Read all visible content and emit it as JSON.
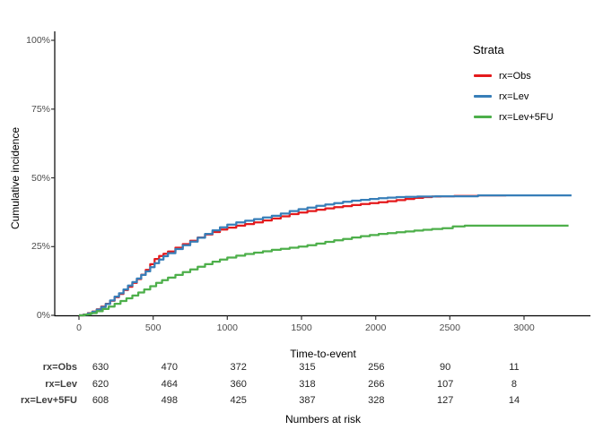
{
  "chart_data": {
    "type": "line",
    "line_style": "step-after",
    "title": "",
    "xlabel": "Time-to-event",
    "ylabel": "Cumulative incidence",
    "xlim": [
      0,
      3400
    ],
    "ylim_percent": [
      0,
      100
    ],
    "grid": false,
    "x_ticks": [
      0,
      500,
      1000,
      1500,
      2000,
      2500,
      3000
    ],
    "y_ticks": [
      {
        "label": "0%",
        "value": 0
      },
      {
        "label": "25%",
        "value": 25
      },
      {
        "label": "50%",
        "value": 50
      },
      {
        "label": "75%",
        "value": 75
      },
      {
        "label": "100%",
        "value": 100
      }
    ],
    "legend_title": "Strata",
    "legend_position": "right-top",
    "series": [
      {
        "name": "rx=Obs",
        "color": "#E41A1C",
        "points": [
          [
            0,
            0
          ],
          [
            30,
            0.3
          ],
          [
            60,
            0.8
          ],
          [
            90,
            1.4
          ],
          [
            120,
            2.2
          ],
          [
            150,
            3.2
          ],
          [
            180,
            4.2
          ],
          [
            210,
            5.3
          ],
          [
            240,
            6.6
          ],
          [
            270,
            7.8
          ],
          [
            300,
            9.2
          ],
          [
            330,
            10.4
          ],
          [
            360,
            11.8
          ],
          [
            390,
            13.2
          ],
          [
            420,
            14.8
          ],
          [
            450,
            16.5
          ],
          [
            480,
            18.6
          ],
          [
            510,
            20.5
          ],
          [
            540,
            21.6
          ],
          [
            570,
            22.4
          ],
          [
            600,
            23.2
          ],
          [
            650,
            24.6
          ],
          [
            700,
            25.9
          ],
          [
            750,
            27.1
          ],
          [
            800,
            28.3
          ],
          [
            850,
            29.4
          ],
          [
            900,
            30.3
          ],
          [
            950,
            31.2
          ],
          [
            1000,
            31.9
          ],
          [
            1060,
            32.6
          ],
          [
            1120,
            33.2
          ],
          [
            1180,
            33.8
          ],
          [
            1240,
            34.5
          ],
          [
            1300,
            35.2
          ],
          [
            1360,
            36.0
          ],
          [
            1420,
            36.8
          ],
          [
            1480,
            37.4
          ],
          [
            1540,
            37.9
          ],
          [
            1600,
            38.4
          ],
          [
            1660,
            38.9
          ],
          [
            1720,
            39.3
          ],
          [
            1780,
            39.7
          ],
          [
            1840,
            40.1
          ],
          [
            1900,
            40.5
          ],
          [
            1960,
            40.8
          ],
          [
            2020,
            41.1
          ],
          [
            2080,
            41.5
          ],
          [
            2140,
            41.9
          ],
          [
            2200,
            42.3
          ],
          [
            2260,
            42.7
          ],
          [
            2320,
            43.0
          ],
          [
            2380,
            43.2
          ],
          [
            2440,
            43.3
          ],
          [
            2530,
            43.4
          ],
          [
            2690,
            43.6
          ],
          [
            2880,
            43.6
          ]
        ]
      },
      {
        "name": "rx=Lev",
        "color": "#377EB8",
        "points": [
          [
            0,
            0
          ],
          [
            30,
            0.2
          ],
          [
            60,
            0.7
          ],
          [
            90,
            1.3
          ],
          [
            120,
            2.1
          ],
          [
            150,
            3.0
          ],
          [
            180,
            4.1
          ],
          [
            210,
            5.4
          ],
          [
            240,
            6.8
          ],
          [
            270,
            8.0
          ],
          [
            300,
            9.4
          ],
          [
            330,
            10.8
          ],
          [
            360,
            12.1
          ],
          [
            390,
            13.4
          ],
          [
            420,
            14.7
          ],
          [
            450,
            16.0
          ],
          [
            480,
            17.5
          ],
          [
            510,
            19.0
          ],
          [
            540,
            20.3
          ],
          [
            570,
            21.5
          ],
          [
            600,
            22.6
          ],
          [
            650,
            24.1
          ],
          [
            700,
            25.5
          ],
          [
            750,
            26.8
          ],
          [
            800,
            28.2
          ],
          [
            850,
            29.6
          ],
          [
            900,
            30.9
          ],
          [
            950,
            32.0
          ],
          [
            1000,
            33.0
          ],
          [
            1060,
            33.8
          ],
          [
            1120,
            34.4
          ],
          [
            1180,
            35.0
          ],
          [
            1240,
            35.6
          ],
          [
            1300,
            36.2
          ],
          [
            1360,
            37.0
          ],
          [
            1420,
            37.9
          ],
          [
            1480,
            38.6
          ],
          [
            1540,
            39.2
          ],
          [
            1600,
            39.8
          ],
          [
            1660,
            40.3
          ],
          [
            1720,
            40.8
          ],
          [
            1780,
            41.3
          ],
          [
            1840,
            41.7
          ],
          [
            1900,
            42.0
          ],
          [
            1960,
            42.3
          ],
          [
            2020,
            42.6
          ],
          [
            2080,
            42.8
          ],
          [
            2140,
            43.0
          ],
          [
            2200,
            43.1
          ],
          [
            2280,
            43.2
          ],
          [
            2400,
            43.3
          ],
          [
            2690,
            43.6
          ],
          [
            3100,
            43.6
          ],
          [
            3320,
            43.6
          ]
        ]
      },
      {
        "name": "rx=Lev+5FU",
        "color": "#4DAF4A",
        "points": [
          [
            0,
            0
          ],
          [
            40,
            0.3
          ],
          [
            80,
            0.8
          ],
          [
            120,
            1.5
          ],
          [
            160,
            2.3
          ],
          [
            200,
            3.2
          ],
          [
            240,
            4.2
          ],
          [
            280,
            5.2
          ],
          [
            320,
            6.2
          ],
          [
            360,
            7.2
          ],
          [
            400,
            8.3
          ],
          [
            440,
            9.4
          ],
          [
            480,
            10.6
          ],
          [
            520,
            11.8
          ],
          [
            560,
            12.8
          ],
          [
            600,
            13.7
          ],
          [
            650,
            14.7
          ],
          [
            700,
            15.7
          ],
          [
            750,
            16.7
          ],
          [
            800,
            17.7
          ],
          [
            850,
            18.6
          ],
          [
            900,
            19.5
          ],
          [
            950,
            20.3
          ],
          [
            1000,
            21.0
          ],
          [
            1060,
            21.7
          ],
          [
            1120,
            22.3
          ],
          [
            1180,
            22.8
          ],
          [
            1240,
            23.3
          ],
          [
            1300,
            23.8
          ],
          [
            1360,
            24.2
          ],
          [
            1420,
            24.6
          ],
          [
            1480,
            25.0
          ],
          [
            1540,
            25.5
          ],
          [
            1600,
            26.1
          ],
          [
            1660,
            26.7
          ],
          [
            1720,
            27.3
          ],
          [
            1780,
            27.8
          ],
          [
            1840,
            28.3
          ],
          [
            1900,
            28.8
          ],
          [
            1960,
            29.2
          ],
          [
            2020,
            29.6
          ],
          [
            2080,
            29.9
          ],
          [
            2140,
            30.2
          ],
          [
            2200,
            30.5
          ],
          [
            2260,
            30.8
          ],
          [
            2320,
            31.1
          ],
          [
            2380,
            31.4
          ],
          [
            2450,
            31.7
          ],
          [
            2520,
            32.3
          ],
          [
            2600,
            32.6
          ],
          [
            3000,
            32.6
          ],
          [
            3300,
            32.6
          ]
        ]
      }
    ],
    "numbers_at_risk": {
      "caption": "Numbers at risk",
      "columns": [
        0,
        500,
        1000,
        1500,
        2000,
        2500,
        3000
      ],
      "rows": [
        {
          "label": "rx=Obs",
          "values": [
            630,
            470,
            372,
            315,
            256,
            90,
            11
          ]
        },
        {
          "label": "rx=Lev",
          "values": [
            620,
            464,
            360,
            318,
            266,
            107,
            8
          ]
        },
        {
          "label": "rx=Lev+5FU",
          "values": [
            608,
            498,
            425,
            387,
            328,
            127,
            14
          ]
        }
      ]
    }
  }
}
